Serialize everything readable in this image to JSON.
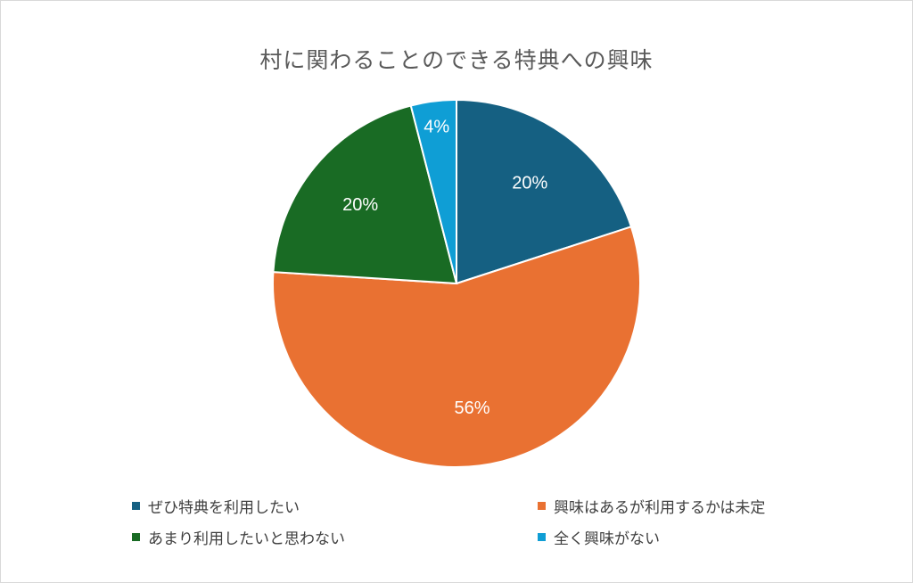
{
  "chart_data": {
    "type": "pie",
    "title": "村に関わることのできる特典への興味",
    "legend_position": "bottom",
    "slices": [
      {
        "label": "ぜひ特典を利用したい",
        "value": 20,
        "display": "20%",
        "color": "#156082"
      },
      {
        "label": "興味はあるが利用するかは未定",
        "value": 56,
        "display": "56%",
        "color": "#E97132"
      },
      {
        "label": "あまり利用したいと思わない",
        "value": 20,
        "display": "20%",
        "color": "#196B24"
      },
      {
        "label": "全く興味がない",
        "value": 4,
        "display": "4%",
        "color": "#0F9ED5"
      }
    ]
  }
}
